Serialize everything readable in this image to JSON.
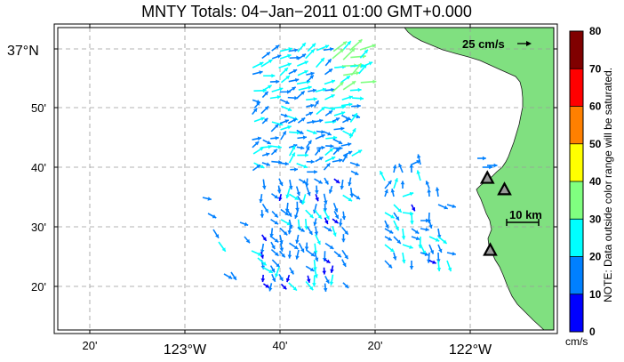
{
  "title": "MNTY Totals: 04−Jan−2011 01:00 GMT+0.000",
  "latitude_labels": [
    {
      "lat": 37.0,
      "label": "37°N"
    },
    {
      "lat": 36.8333,
      "label": "50'"
    },
    {
      "lat": 36.6667,
      "label": "40'"
    },
    {
      "lat": 36.5,
      "label": "30'"
    },
    {
      "lat": 36.3333,
      "label": "20'"
    }
  ],
  "longitude_labels": [
    {
      "lon": -123.3333,
      "label": "20'"
    },
    {
      "lon": -123.0,
      "label": "123°W"
    },
    {
      "lon": -122.6667,
      "label": "40'"
    },
    {
      "lon": -122.3333,
      "label": "20'"
    },
    {
      "lon": -122.0,
      "label": "122°W"
    }
  ],
  "reference_arrow": {
    "label": "25 cm/s",
    "speed": 25
  },
  "scale_bar": {
    "label": "10 km",
    "km": 10
  },
  "colorbar": {
    "ticks": [
      "0",
      "10",
      "20",
      "30",
      "40",
      "50",
      "60",
      "70",
      "80"
    ],
    "unit": "cm/s",
    "note": "NOTE: Data outside color range will be saturated.",
    "bands": [
      {
        "from": 0,
        "to": 10,
        "color": "#0000ff"
      },
      {
        "from": 10,
        "to": 20,
        "color": "#0080ff"
      },
      {
        "from": 20,
        "to": 30,
        "color": "#00ffff"
      },
      {
        "from": 30,
        "to": 40,
        "color": "#80ff80"
      },
      {
        "from": 40,
        "to": 50,
        "color": "#ffff00"
      },
      {
        "from": 50,
        "to": 60,
        "color": "#ff8000"
      },
      {
        "from": 60,
        "to": 70,
        "color": "#ff0000"
      },
      {
        "from": 70,
        "to": 80,
        "color": "#800000"
      }
    ]
  },
  "colors": {
    "land": "#80e080",
    "grid": "#999999",
    "station": "#000000"
  },
  "stations": [
    {
      "lon": -121.94,
      "lat": 36.637
    },
    {
      "lon": -121.88,
      "lat": 36.605
    },
    {
      "lon": -121.93,
      "lat": 36.435
    }
  ]
}
